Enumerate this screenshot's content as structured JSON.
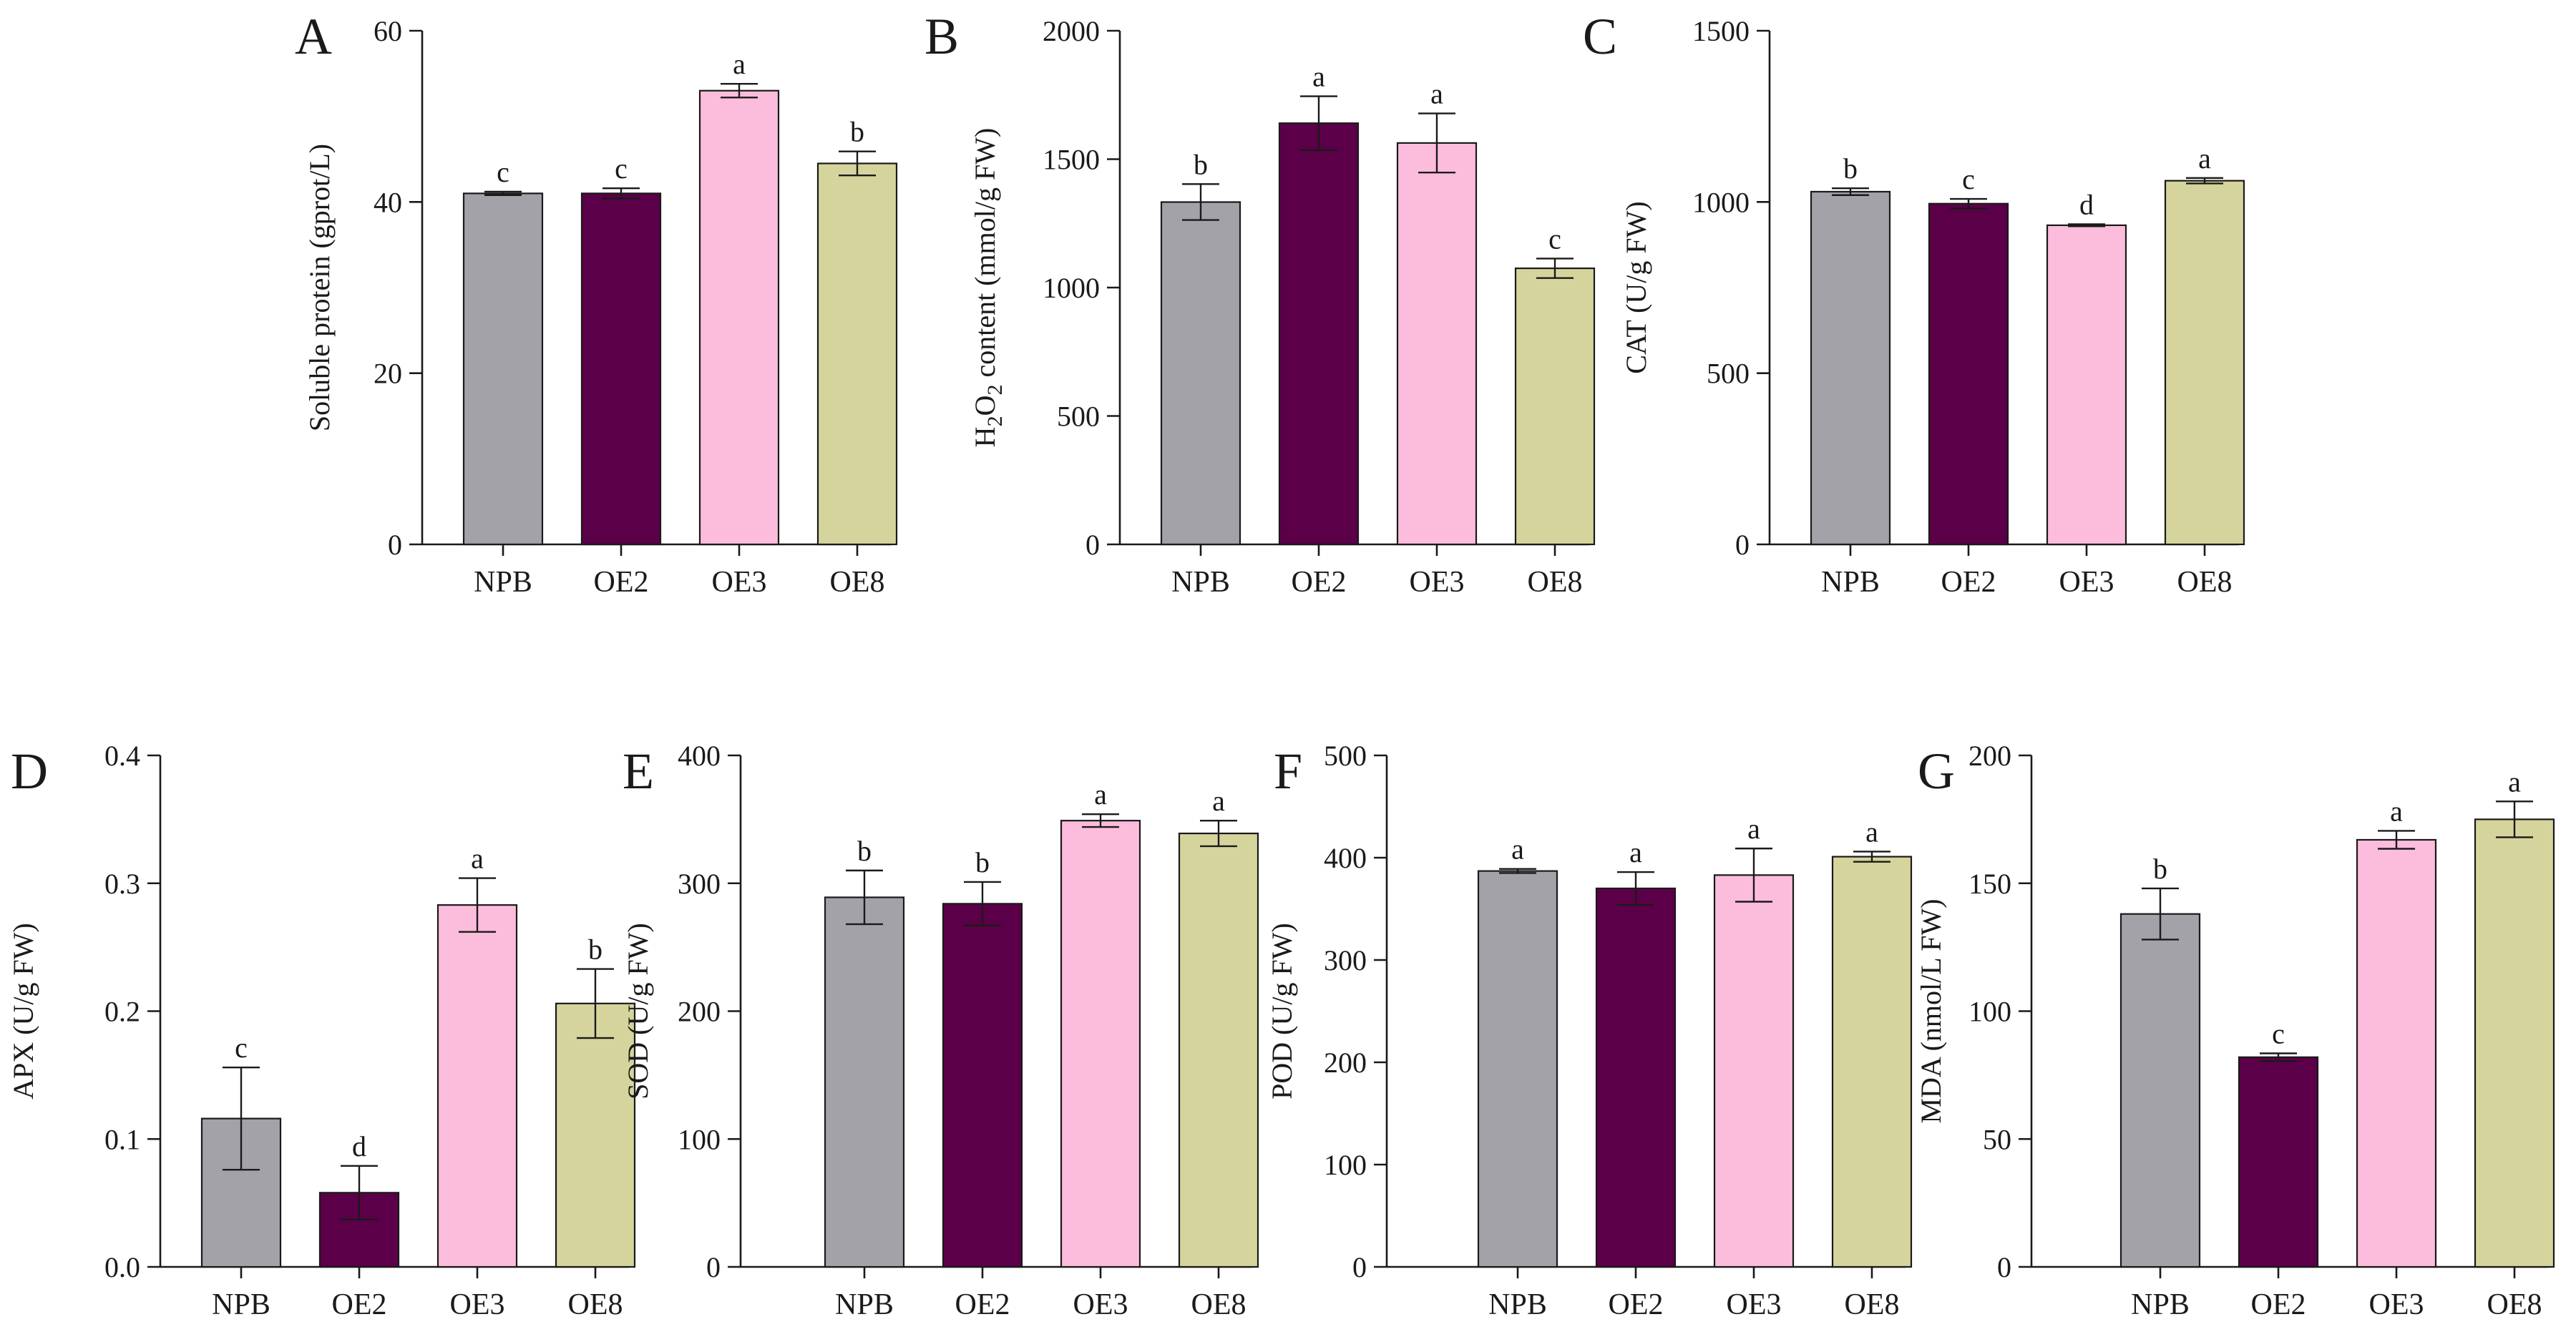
{
  "colors": {
    "NPB": "#a3a2a8",
    "OE2": "#5b0048",
    "OE3": "#fcbddc",
    "OE8": "#d5d49d"
  },
  "chart_data": [
    {
      "panel": "A",
      "type": "bar",
      "ylabel": "Soluble protein (gprot/L)",
      "ylim": [
        0,
        60
      ],
      "yticks": [
        0,
        20,
        40,
        60
      ],
      "categories": [
        "NPB",
        "OE2",
        "OE3",
        "OE8"
      ],
      "values": [
        41,
        41,
        53,
        44.5
      ],
      "errors": [
        0.2,
        0.6,
        0.8,
        1.4
      ],
      "letters": [
        "c",
        "c",
        "a",
        "b"
      ]
    },
    {
      "panel": "B",
      "type": "bar",
      "ylabel": "H2O2 content (mmol/g FW)",
      "ylim": [
        0,
        2000
      ],
      "yticks": [
        0,
        500,
        1000,
        1500,
        2000
      ],
      "categories": [
        "NPB",
        "OE2",
        "OE3",
        "OE8"
      ],
      "values": [
        1333,
        1640,
        1563,
        1075
      ],
      "errors": [
        70,
        105,
        115,
        38
      ],
      "letters": [
        "b",
        "a",
        "a",
        "c"
      ]
    },
    {
      "panel": "C",
      "type": "bar",
      "ylabel": "CAT (U/g FW)",
      "ylim": [
        0,
        1500
      ],
      "yticks": [
        0,
        500,
        1000,
        1500
      ],
      "categories": [
        "NPB",
        "OE2",
        "OE3",
        "OE8"
      ],
      "values": [
        1030,
        995,
        932,
        1062
      ],
      "errors": [
        10,
        14,
        3,
        8
      ],
      "letters": [
        "b",
        "c",
        "d",
        "a"
      ]
    },
    {
      "panel": "D",
      "type": "bar",
      "ylabel": "APX (U/g FW)",
      "ylim": [
        0,
        0.4
      ],
      "yticks": [
        0.0,
        0.1,
        0.2,
        0.3,
        0.4
      ],
      "yticklabels": [
        "0.0",
        "0.1",
        "0.2",
        "0.3",
        "0.4"
      ],
      "categories": [
        "NPB",
        "OE2",
        "OE3",
        "OE8"
      ],
      "values": [
        0.116,
        0.058,
        0.283,
        0.206
      ],
      "errors": [
        0.04,
        0.021,
        0.021,
        0.027
      ],
      "letters": [
        "c",
        "d",
        "a",
        "b"
      ]
    },
    {
      "panel": "E",
      "type": "bar",
      "ylabel": "SOD (U/g FW)",
      "ylim": [
        0,
        400
      ],
      "yticks": [
        0,
        100,
        200,
        300,
        400
      ],
      "categories": [
        "NPB",
        "OE2",
        "OE3",
        "OE8"
      ],
      "values": [
        289,
        284,
        349,
        339
      ],
      "errors": [
        21,
        17,
        5,
        10
      ],
      "letters": [
        "b",
        "b",
        "a",
        "a"
      ]
    },
    {
      "panel": "F",
      "type": "bar",
      "ylabel": "POD (U/g FW)",
      "ylim": [
        0,
        500
      ],
      "yticks": [
        0,
        100,
        200,
        300,
        400,
        500
      ],
      "categories": [
        "NPB",
        "OE2",
        "OE3",
        "OE8"
      ],
      "values": [
        387,
        370,
        383,
        401
      ],
      "errors": [
        2,
        16,
        26,
        5
      ],
      "letters": [
        "a",
        "a",
        "a",
        "a"
      ]
    },
    {
      "panel": "G",
      "type": "bar",
      "ylabel": "MDA (nmol/L FW)",
      "ylim": [
        0,
        200
      ],
      "yticks": [
        0,
        50,
        100,
        150,
        200
      ],
      "categories": [
        "NPB",
        "OE2",
        "OE3",
        "OE8"
      ],
      "values": [
        138,
        82,
        167,
        175
      ],
      "errors": [
        10,
        1.5,
        3.5,
        7
      ],
      "letters": [
        "b",
        "c",
        "a",
        "a"
      ]
    }
  ]
}
